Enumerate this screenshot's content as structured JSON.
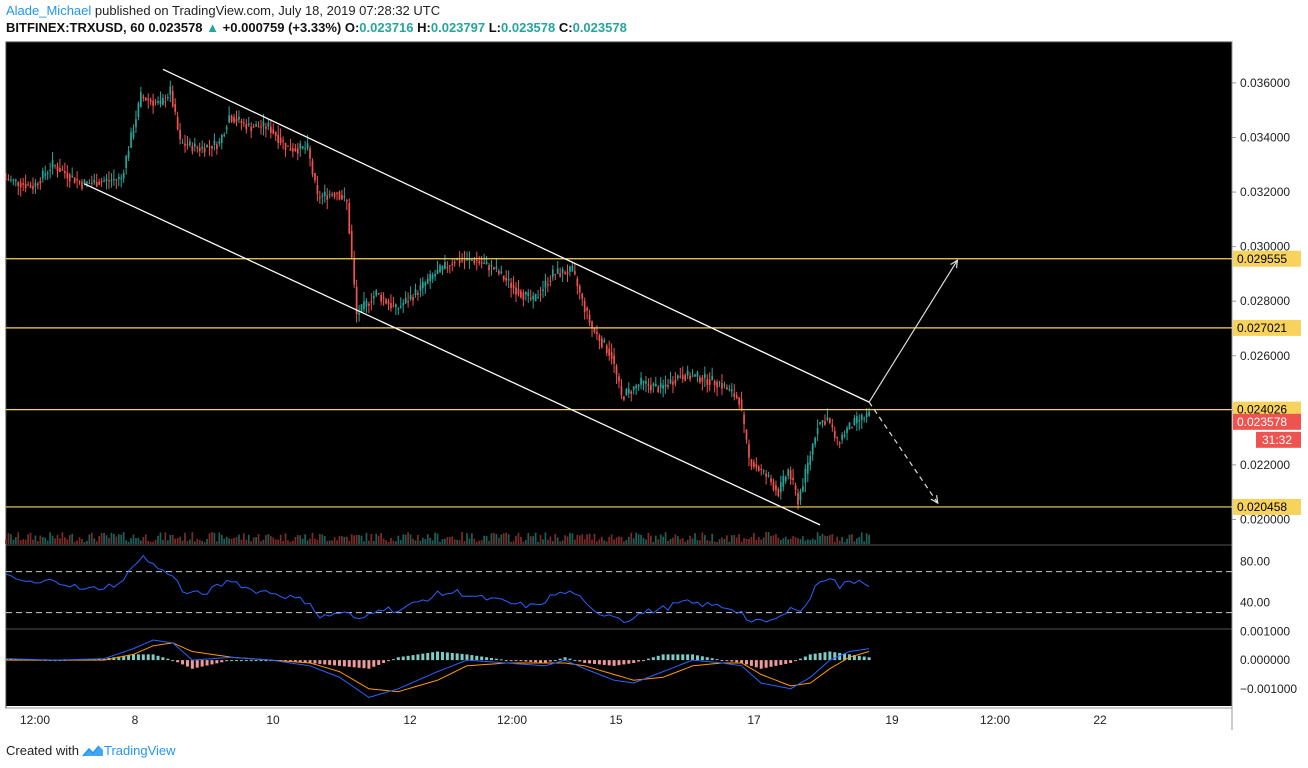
{
  "header": {
    "author": "Alade_Michael",
    "published_text": "published on TradingView.com, July 18, 2019 07:28:32 UTC",
    "symbol": "BITFINEX:TRXUSD, 60",
    "last": "0.023578",
    "change_arrow": "▲",
    "change": "+0.000759 (+3.33%)",
    "o_label": "O:",
    "o_value": "0.023716",
    "h_label": "H:",
    "h_value": "0.023797",
    "l_label": "L:",
    "l_value": "0.023578",
    "c_label": "C:",
    "c_value": "0.023578"
  },
  "footer": {
    "created_with": "Created with",
    "brand": "TradingView",
    "logo_icon": "tradingview-logo-icon"
  },
  "colors": {
    "background": "#000000",
    "up": "#26a69a",
    "down": "#ef5350",
    "level_line": "#f7d35c",
    "level_label_bg": "#f7d35c",
    "last_price_bg": "#ef5350",
    "rsi_line": "#2962ff",
    "macd_line": "#2962ff",
    "signal_line": "#ff9800",
    "channel": "#ffffff"
  },
  "chart_data": {
    "type": "candlestick",
    "x_tick_labels": [
      "12:00",
      "8",
      "10",
      "12",
      "12:00",
      "15",
      "17",
      "19",
      "12:00",
      "22"
    ],
    "y_tick_labels": [
      "0.036000",
      "0.034000",
      "0.032000",
      "0.030000",
      "0.028000",
      "0.026000",
      "0.024000",
      "0.022000",
      "0.020000"
    ],
    "y_ticks": [
      0.036,
      0.034,
      0.032,
      0.03,
      0.028,
      0.026,
      0.024,
      0.022,
      0.02
    ],
    "ylim": [
      0.0191,
      0.0375
    ],
    "levels": [
      {
        "label": "0.029555",
        "value": 0.029555
      },
      {
        "label": "0.027021",
        "value": 0.027021
      },
      {
        "label": "0.024026",
        "value": 0.024026
      },
      {
        "label": "0.020458",
        "value": 0.020458
      }
    ],
    "last_price": {
      "label": "0.023578",
      "value": 0.023578
    },
    "countdown": "31:32",
    "price_path": [
      [
        0,
        0.0325
      ],
      [
        3,
        0.0322
      ],
      [
        5,
        0.033
      ],
      [
        8,
        0.0323
      ],
      [
        10,
        0.0324
      ],
      [
        12,
        0.0325
      ],
      [
        13,
        0.034
      ],
      [
        14,
        0.0355
      ],
      [
        16,
        0.0352
      ],
      [
        17,
        0.0357
      ],
      [
        18,
        0.0338
      ],
      [
        20,
        0.0336
      ],
      [
        22,
        0.0338
      ],
      [
        23,
        0.0348
      ],
      [
        25,
        0.0344
      ],
      [
        27,
        0.0344
      ],
      [
        29,
        0.0336
      ],
      [
        31,
        0.0336
      ],
      [
        32,
        0.0318
      ],
      [
        34,
        0.032
      ],
      [
        35,
        0.0316
      ],
      [
        36,
        0.0275
      ],
      [
        38,
        0.0283
      ],
      [
        40,
        0.0277
      ],
      [
        42,
        0.0283
      ],
      [
        44,
        0.029
      ],
      [
        46,
        0.0295
      ],
      [
        48,
        0.0295
      ],
      [
        50,
        0.0292
      ],
      [
        52,
        0.0285
      ],
      [
        54,
        0.028
      ],
      [
        56,
        0.029
      ],
      [
        58,
        0.0291
      ],
      [
        59,
        0.028
      ],
      [
        60,
        0.027
      ],
      [
        62,
        0.026
      ],
      [
        63,
        0.0245
      ],
      [
        65,
        0.025
      ],
      [
        67,
        0.0248
      ],
      [
        69,
        0.0253
      ],
      [
        71,
        0.0252
      ],
      [
        73,
        0.025
      ],
      [
        74,
        0.0247
      ],
      [
        75,
        0.0244
      ],
      [
        76,
        0.0222
      ],
      [
        78,
        0.0215
      ],
      [
        79,
        0.021
      ],
      [
        80,
        0.0218
      ],
      [
        81,
        0.0207
      ],
      [
        82,
        0.022
      ],
      [
        83,
        0.0235
      ],
      [
        84,
        0.0237
      ],
      [
        85,
        0.0228
      ],
      [
        86,
        0.0233
      ],
      [
        87,
        0.0236
      ],
      [
        88,
        0.0238
      ]
    ],
    "channel_upper": [
      [
        16,
        0.0365
      ],
      [
        88,
        0.0243
      ]
    ],
    "channel_lower": [
      [
        8,
        0.0323
      ],
      [
        83,
        0.0198
      ]
    ],
    "projection_up": [
      [
        88,
        0.0243
      ],
      [
        97,
        0.0295
      ]
    ],
    "projection_down": [
      [
        88,
        0.0243
      ],
      [
        95,
        0.0206
      ]
    ],
    "rsi": {
      "tick_labels": [
        "80.00",
        "40.00"
      ],
      "ticks": [
        80,
        40
      ],
      "ylim": [
        15,
        95
      ],
      "bands": [
        70,
        30
      ],
      "path": [
        [
          0,
          65
        ],
        [
          3,
          58
        ],
        [
          5,
          62
        ],
        [
          8,
          52
        ],
        [
          10,
          55
        ],
        [
          12,
          60
        ],
        [
          13,
          78
        ],
        [
          14,
          84
        ],
        [
          16,
          70
        ],
        [
          17,
          68
        ],
        [
          18,
          50
        ],
        [
          20,
          48
        ],
        [
          23,
          62
        ],
        [
          25,
          52
        ],
        [
          27,
          50
        ],
        [
          29,
          45
        ],
        [
          31,
          40
        ],
        [
          32,
          25
        ],
        [
          34,
          30
        ],
        [
          35,
          28
        ],
        [
          36,
          22
        ],
        [
          38,
          35
        ],
        [
          40,
          32
        ],
        [
          42,
          40
        ],
        [
          44,
          48
        ],
        [
          46,
          50
        ],
        [
          48,
          45
        ],
        [
          50,
          42
        ],
        [
          52,
          38
        ],
        [
          54,
          36
        ],
        [
          56,
          48
        ],
        [
          58,
          50
        ],
        [
          59,
          38
        ],
        [
          60,
          30
        ],
        [
          62,
          28
        ],
        [
          63,
          22
        ],
        [
          65,
          30
        ],
        [
          67,
          34
        ],
        [
          69,
          40
        ],
        [
          71,
          38
        ],
        [
          73,
          36
        ],
        [
          74,
          34
        ],
        [
          75,
          30
        ],
        [
          76,
          20
        ],
        [
          78,
          22
        ],
        [
          79,
          25
        ],
        [
          80,
          38
        ],
        [
          81,
          30
        ],
        [
          82,
          45
        ],
        [
          83,
          62
        ],
        [
          84,
          65
        ],
        [
          85,
          55
        ],
        [
          86,
          60
        ],
        [
          87,
          62
        ],
        [
          88,
          58
        ]
      ]
    },
    "macd": {
      "tick_labels": [
        "0.001000",
        "0.000000",
        "−0.001000"
      ],
      "ticks": [
        0.001,
        0,
        -0.001
      ],
      "ylim": [
        -0.0016,
        0.00105
      ],
      "macd_path": [
        [
          0,
          5e-05
        ],
        [
          5,
          0.0
        ],
        [
          10,
          5e-05
        ],
        [
          13,
          0.0004
        ],
        [
          15,
          0.0007
        ],
        [
          17,
          0.0006
        ],
        [
          19,
          0.0
        ],
        [
          23,
          0.0001
        ],
        [
          27,
          0.0
        ],
        [
          31,
          -0.0002
        ],
        [
          34,
          -0.0006
        ],
        [
          37,
          -0.0013
        ],
        [
          40,
          -0.001
        ],
        [
          44,
          -0.0004
        ],
        [
          47,
          0.0
        ],
        [
          51,
          -0.0001
        ],
        [
          55,
          -0.0002
        ],
        [
          57,
          0.0
        ],
        [
          59,
          -0.0003
        ],
        [
          62,
          -0.0007
        ],
        [
          64,
          -0.0008
        ],
        [
          67,
          -0.0004
        ],
        [
          70,
          0.0
        ],
        [
          73,
          -0.0001
        ],
        [
          75,
          -0.0002
        ],
        [
          77,
          -0.0008
        ],
        [
          80,
          -0.001
        ],
        [
          82,
          -0.0006
        ],
        [
          84,
          0.0
        ],
        [
          86,
          0.0003
        ],
        [
          88,
          0.0004
        ]
      ],
      "signal_path": [
        [
          0,
          0.0
        ],
        [
          5,
          0.0
        ],
        [
          10,
          0.0
        ],
        [
          13,
          0.0002
        ],
        [
          15,
          0.0005
        ],
        [
          17,
          0.0006
        ],
        [
          19,
          0.0003
        ],
        [
          23,
          0.0001
        ],
        [
          27,
          0.0
        ],
        [
          31,
          -0.0001
        ],
        [
          34,
          -0.0004
        ],
        [
          37,
          -0.001
        ],
        [
          40,
          -0.0011
        ],
        [
          44,
          -0.0007
        ],
        [
          47,
          -0.0002
        ],
        [
          51,
          -0.0001
        ],
        [
          55,
          -0.0001
        ],
        [
          57,
          -0.0001
        ],
        [
          59,
          -0.0002
        ],
        [
          62,
          -0.0005
        ],
        [
          64,
          -0.0007
        ],
        [
          67,
          -0.0006
        ],
        [
          70,
          -0.0002
        ],
        [
          73,
          -0.0001
        ],
        [
          75,
          -0.0001
        ],
        [
          77,
          -0.0005
        ],
        [
          80,
          -0.0009
        ],
        [
          82,
          -0.0008
        ],
        [
          84,
          -0.0003
        ],
        [
          86,
          0.0001
        ],
        [
          88,
          0.0003
        ]
      ]
    }
  }
}
